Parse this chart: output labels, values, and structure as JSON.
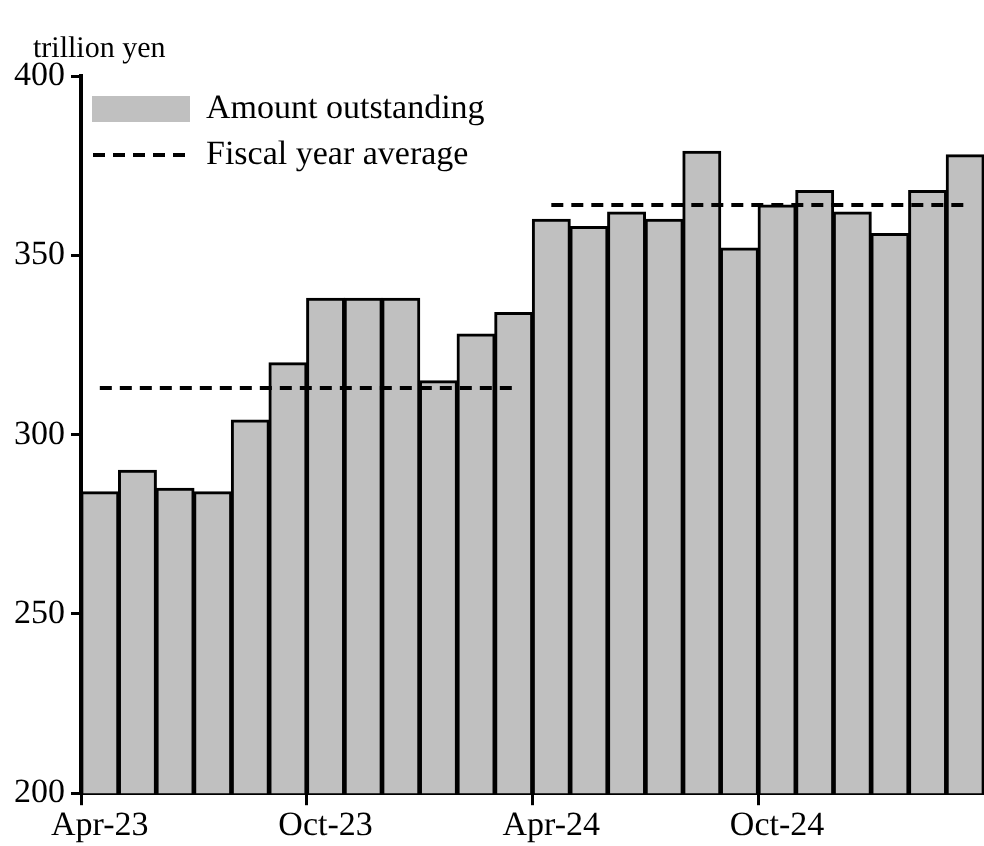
{
  "chart_data": {
    "type": "bar",
    "ylabel": "trillion yen",
    "categories": [
      "Apr-23",
      null,
      null,
      null,
      null,
      null,
      "Oct-23",
      null,
      null,
      null,
      null,
      null,
      "Apr-24",
      null,
      null,
      null,
      null,
      null,
      "Oct-24",
      null,
      null,
      null,
      null,
      null
    ],
    "series": [
      {
        "name": "Amount outstanding",
        "color": "#c0c0c0",
        "values": [
          284,
          290,
          285,
          284,
          304,
          320,
          338,
          338,
          338,
          315,
          328,
          334,
          360,
          358,
          362,
          360,
          379,
          352,
          364,
          368,
          362,
          356,
          368,
          378
        ]
      },
      {
        "name": "Fiscal year average",
        "type": "line",
        "color": "#000000",
        "line_style": "dashed",
        "marker": "none",
        "values": [
          313,
          313,
          313,
          313,
          313,
          313,
          313,
          313,
          313,
          313,
          313,
          313,
          364,
          364,
          364,
          364,
          364,
          364,
          364,
          364,
          364,
          364,
          364,
          364
        ]
      }
    ],
    "ylim": [
      200,
      400
    ],
    "yticks": [
      200,
      250,
      300,
      350,
      400
    ],
    "grid": false,
    "legend": "top left"
  }
}
